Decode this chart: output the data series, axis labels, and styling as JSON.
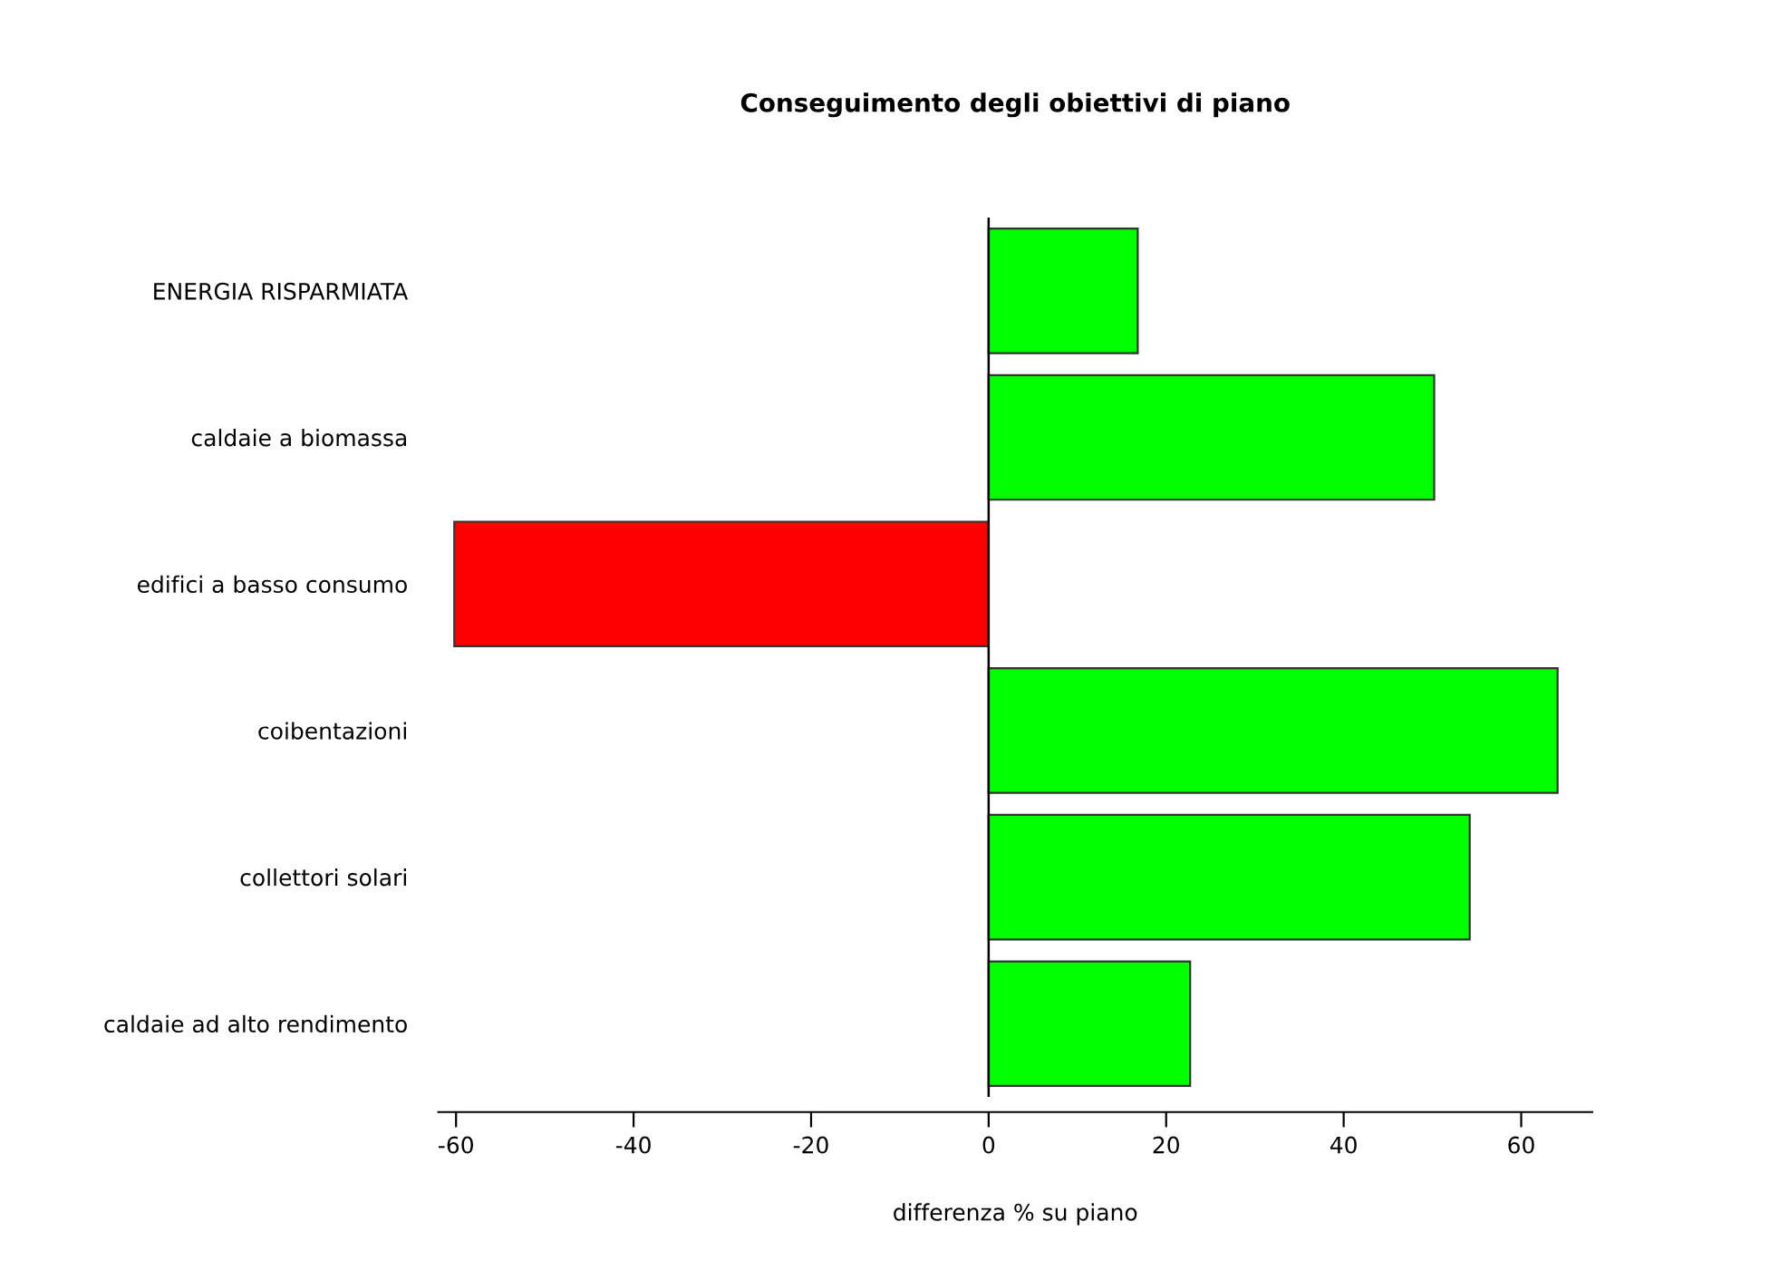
{
  "chart_data": {
    "type": "bar",
    "orientation": "horizontal",
    "title": "Conseguimento degli obiettivi di piano",
    "xlabel": "differenza % su piano",
    "categories": [
      "ENERGIA RISPARMIATA",
      "caldaie a biomassa",
      "edifici a basso consumo",
      "coibentazioni",
      "collettori solari",
      "caldaie ad alto rendimento"
    ],
    "values": [
      16.8,
      50.2,
      -60.2,
      64.1,
      54.2,
      22.7
    ],
    "colors": [
      "#00ff00",
      "#00ff00",
      "#ff0000",
      "#00ff00",
      "#00ff00",
      "#00ff00"
    ],
    "xlim": [
      -62,
      68
    ],
    "xticks": [
      -60,
      -40,
      -20,
      0,
      20,
      40,
      60
    ],
    "ref_lines": [
      {
        "axis": "x",
        "value": 0,
        "color": "#000000"
      }
    ],
    "grid": false,
    "legend": false
  }
}
